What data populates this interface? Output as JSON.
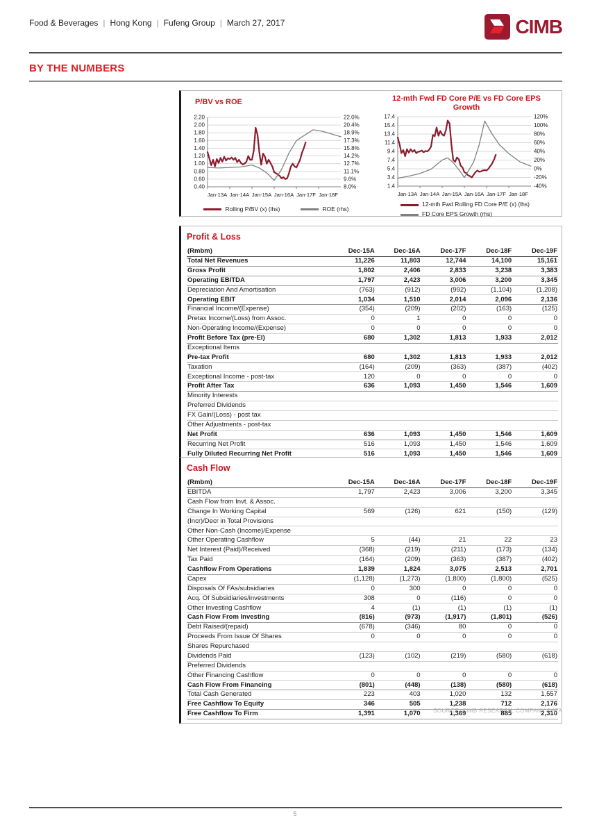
{
  "header": {
    "breadcrumb": [
      "Food & Beverages",
      "Hong Kong",
      "Fufeng Group",
      "March 27, 2017"
    ],
    "separator": "|",
    "logo_text": "CIMB",
    "section_title": "BY THE NUMBERS"
  },
  "footer": {
    "page_number": "5"
  },
  "source_note": "SOURCE: CIMB RESEARCH, COMPANY DATA",
  "colors": {
    "maroon_line": "#8C1B2C",
    "gray_line": "#808080",
    "accent_red": "#C8161D",
    "logo_red": "#9A1B2F",
    "logo_bright_red": "#E8212E"
  },
  "chart_data": [
    {
      "type": "line",
      "title": "P/BV vs ROE",
      "x_tick_labels": [
        "Jan-13A",
        "Jan-14A",
        "Jan-15A",
        "Jan-16A",
        "Jan-17F",
        "Jan-18F"
      ],
      "x_ticks": [
        0,
        12,
        24,
        36,
        48,
        60
      ],
      "x_range": [
        0,
        72
      ],
      "left_axis": {
        "min": 0.4,
        "max": 2.2,
        "ticks": [
          "2.20",
          "2.00",
          "1.80",
          "1.60",
          "1.40",
          "1.20",
          "1.00",
          "0.80",
          "0.60",
          "0.40"
        ]
      },
      "right_axis": {
        "min": 8.0,
        "max": 22.0,
        "ticks": [
          "22.0%",
          "20.4%",
          "18.9%",
          "17.3%",
          "15.8%",
          "14.2%",
          "12.7%",
          "11.1%",
          "9.6%",
          "8.0%"
        ]
      },
      "grid": true,
      "legend_position": "bottom",
      "series": [
        {
          "name": "Rolling P/BV (x) (lhs)",
          "axis": "left",
          "color": "#8C1B2C",
          "values": [
            1.3,
            1.13,
            0.96,
            1.1,
            0.93,
            1.12,
            1.02,
            1.15,
            1.05,
            1.18,
            1.08,
            1.14,
            1.12,
            1.16,
            1.1,
            1.15,
            1.04,
            1.1,
            1.02,
            0.98,
            1.0,
            1.05,
            1.2,
            1.1,
            1.1,
            1.35,
            1.93,
            1.75,
            1.28,
            0.97,
            1.26,
            1.18,
            1.0,
            1.1,
            1.02,
            0.93,
            0.78,
            0.75,
            0.72,
            0.68,
            0.62,
            0.65,
            0.6,
            0.62,
            0.75,
            0.92,
            1.0,
            0.93,
            0.9,
            1.0,
            1.1,
            1.28,
            1.4,
            1.55
          ]
        },
        {
          "name": "ROE (rhs)",
          "axis": "right",
          "color": "#808080",
          "x": [
            0,
            6,
            12,
            18,
            24,
            28,
            32,
            36,
            40,
            44,
            48,
            52,
            57,
            62,
            72
          ],
          "values": [
            11.9,
            11.8,
            11.9,
            12.0,
            12.4,
            11.8,
            10.8,
            9.3,
            11.5,
            14.8,
            17.3,
            18.3,
            19.5,
            19.2,
            18.1
          ]
        }
      ]
    },
    {
      "type": "line",
      "title": "12-mth Fwd FD Core P/E vs FD Core EPS Growth",
      "x_tick_labels": [
        "Jan-13A",
        "Jan-14A",
        "Jan-15A",
        "Jan-16A",
        "Jan-17F",
        "Jan-18F"
      ],
      "x_ticks": [
        0,
        12,
        24,
        36,
        48,
        60
      ],
      "x_range": [
        0,
        72
      ],
      "left_axis": {
        "min": 1.4,
        "max": 17.4,
        "ticks": [
          "17.4",
          "15.4",
          "13.4",
          "11.4",
          "9.4",
          "7.4",
          "5.4",
          "3.4",
          "1.4"
        ]
      },
      "right_axis": {
        "min": -40,
        "max": 120,
        "ticks": [
          "120%",
          "100%",
          "80%",
          "60%",
          "40%",
          "20%",
          "0%",
          "-20%",
          "-40%"
        ]
      },
      "grid": true,
      "legend_position": "bottom",
      "series": [
        {
          "name": "12-mth Fwd Rolling FD Core P/E (x) (lhs)",
          "axis": "left",
          "color": "#8C1B2C",
          "values": [
            12.6,
            11.0,
            9.0,
            9.7,
            8.3,
            9.9,
            9.1,
            9.9,
            9.3,
            9.7,
            9.0,
            9.3,
            9.4,
            9.6,
            9.2,
            9.5,
            9.4,
            9.8,
            10.5,
            13.2,
            12.9,
            14.9,
            13.0,
            14.1,
            13.3,
            13.0,
            14.2,
            16.5,
            15.8,
            11.0,
            7.4,
            7.0,
            8.0,
            7.6,
            6.1,
            5.7,
            4.6,
            4.4,
            3.9,
            3.7,
            3.4,
            4.0,
            4.6,
            5.0,
            4.7,
            4.8,
            5.0,
            5.1,
            5.0,
            5.4,
            6.0,
            6.6,
            7.5,
            8.6
          ]
        },
        {
          "name": "FD Core EPS Growth (rhs)",
          "axis": "right",
          "color": "#808080",
          "x": [
            0,
            6,
            12,
            18,
            24,
            27,
            30,
            33,
            36,
            41,
            44,
            47,
            51,
            55,
            60,
            66,
            72
          ],
          "values": [
            -22,
            -17,
            -11,
            -1,
            20,
            25,
            14,
            -2,
            -20,
            15,
            55,
            110,
            80,
            55,
            35,
            16,
            6
          ]
        }
      ]
    }
  ],
  "tables": [
    {
      "title": "Profit & Loss",
      "unit_label": "(Rmbm)",
      "columns": [
        "Dec-15A",
        "Dec-16A",
        "Dec-17F",
        "Dec-18F",
        "Dec-19F"
      ],
      "rows": [
        {
          "label": "Total Net Revenues",
          "bold": true,
          "values": [
            "11,226",
            "11,803",
            "12,744",
            "14,100",
            "15,161"
          ]
        },
        {
          "label": "Gross Profit",
          "bold": true,
          "values": [
            "1,802",
            "2,406",
            "2,833",
            "3,238",
            "3,383"
          ]
        },
        {
          "label": "Operating EBITDA",
          "bold": true,
          "values": [
            "1,797",
            "2,423",
            "3,006",
            "3,200",
            "3,345"
          ]
        },
        {
          "label": "Depreciation And Amortisation",
          "bold": false,
          "values": [
            "(763)",
            "(912)",
            "(992)",
            "(1,104)",
            "(1,208)"
          ]
        },
        {
          "label": "Operating EBIT",
          "bold": true,
          "values": [
            "1,034",
            "1,510",
            "2,014",
            "2,096",
            "2,136"
          ]
        },
        {
          "label": "Financial Income/(Expense)",
          "bold": false,
          "values": [
            "(354)",
            "(209)",
            "(202)",
            "(163)",
            "(125)"
          ]
        },
        {
          "label": "Pretax Income/(Loss) from Assoc.",
          "bold": false,
          "values": [
            "0",
            "1",
            "0",
            "0",
            "0"
          ]
        },
        {
          "label": "Non-Operating Income/(Expense)",
          "bold": false,
          "values": [
            "0",
            "0",
            "0",
            "0",
            "0"
          ]
        },
        {
          "label": "Profit Before Tax (pre-EI)",
          "bold": true,
          "values": [
            "680",
            "1,302",
            "1,813",
            "1,933",
            "2,012"
          ]
        },
        {
          "label": "Exceptional Items",
          "bold": false,
          "values": [
            "",
            "",
            "",
            "",
            ""
          ]
        },
        {
          "label": "Pre-tax Profit",
          "bold": true,
          "values": [
            "680",
            "1,302",
            "1,813",
            "1,933",
            "2,012"
          ]
        },
        {
          "label": "Taxation",
          "bold": false,
          "values": [
            "(164)",
            "(209)",
            "(363)",
            "(387)",
            "(402)"
          ]
        },
        {
          "label": "Exceptional Income - post-tax",
          "bold": false,
          "values": [
            "120",
            "0",
            "0",
            "0",
            "0"
          ]
        },
        {
          "label": "Profit After Tax",
          "bold": true,
          "values": [
            "636",
            "1,093",
            "1,450",
            "1,546",
            "1,609"
          ]
        },
        {
          "label": "Minority Interests",
          "bold": false,
          "values": [
            "",
            "",
            "",
            "",
            ""
          ]
        },
        {
          "label": "Preferred Dividends",
          "bold": false,
          "values": [
            "",
            "",
            "",
            "",
            ""
          ]
        },
        {
          "label": "FX Gain/(Loss) - post tax",
          "bold": false,
          "values": [
            "",
            "",
            "",
            "",
            ""
          ]
        },
        {
          "label": "Other Adjustments - post-tax",
          "bold": false,
          "values": [
            "",
            "",
            "",
            "",
            ""
          ]
        },
        {
          "label": "Net Profit",
          "bold": true,
          "values": [
            "636",
            "1,093",
            "1,450",
            "1,546",
            "1,609"
          ]
        },
        {
          "label": "Recurring Net Profit",
          "bold": false,
          "values": [
            "516",
            "1,093",
            "1,450",
            "1,546",
            "1,609"
          ]
        },
        {
          "label": "Fully Diluted Recurring Net Profit",
          "bold": true,
          "values": [
            "516",
            "1,093",
            "1,450",
            "1,546",
            "1,609"
          ]
        }
      ]
    },
    {
      "title": "Cash Flow",
      "unit_label": "(Rmbm)",
      "columns": [
        "Dec-15A",
        "Dec-16A",
        "Dec-17F",
        "Dec-18F",
        "Dec-19F"
      ],
      "rows": [
        {
          "label": "EBITDA",
          "bold": false,
          "values": [
            "1,797",
            "2,423",
            "3,006",
            "3,200",
            "3,345"
          ]
        },
        {
          "label": "Cash Flow from Invt. & Assoc.",
          "bold": false,
          "values": [
            "",
            "",
            "",
            "",
            ""
          ]
        },
        {
          "label": "Change In Working Capital",
          "bold": false,
          "values": [
            "569",
            "(126)",
            "621",
            "(150)",
            "(129)"
          ]
        },
        {
          "label": "(Incr)/Decr in Total Provisions",
          "bold": false,
          "values": [
            "",
            "",
            "",
            "",
            ""
          ]
        },
        {
          "label": "Other Non-Cash (Income)/Expense",
          "bold": false,
          "values": [
            "",
            "",
            "",
            "",
            ""
          ]
        },
        {
          "label": "Other Operating Cashflow",
          "bold": false,
          "values": [
            "5",
            "(44)",
            "21",
            "22",
            "23"
          ]
        },
        {
          "label": "Net Interest (Paid)/Received",
          "bold": false,
          "values": [
            "(368)",
            "(219)",
            "(211)",
            "(173)",
            "(134)"
          ]
        },
        {
          "label": "Tax Paid",
          "bold": false,
          "values": [
            "(164)",
            "(209)",
            "(363)",
            "(387)",
            "(402)"
          ]
        },
        {
          "label": "Cashflow From Operations",
          "bold": true,
          "values": [
            "1,839",
            "1,824",
            "3,075",
            "2,513",
            "2,701"
          ]
        },
        {
          "label": "Capex",
          "bold": false,
          "values": [
            "(1,128)",
            "(1,273)",
            "(1,800)",
            "(1,800)",
            "(525)"
          ]
        },
        {
          "label": "Disposals Of FAs/subsidiaries",
          "bold": false,
          "values": [
            "0",
            "300",
            "0",
            "0",
            "0"
          ]
        },
        {
          "label": "Acq. Of Subsidiaries/investments",
          "bold": false,
          "values": [
            "308",
            "0",
            "(116)",
            "0",
            "0"
          ]
        },
        {
          "label": "Other Investing Cashflow",
          "bold": false,
          "values": [
            "4",
            "(1)",
            "(1)",
            "(1)",
            "(1)"
          ]
        },
        {
          "label": "Cash Flow From Investing",
          "bold": true,
          "values": [
            "(816)",
            "(973)",
            "(1,917)",
            "(1,801)",
            "(526)"
          ]
        },
        {
          "label": "Debt Raised/(repaid)",
          "bold": false,
          "values": [
            "(678)",
            "(346)",
            "80",
            "0",
            "0"
          ]
        },
        {
          "label": "Proceeds From Issue Of Shares",
          "bold": false,
          "values": [
            "0",
            "0",
            "0",
            "0",
            "0"
          ]
        },
        {
          "label": "Shares Repurchased",
          "bold": false,
          "values": [
            "",
            "",
            "",
            "",
            ""
          ]
        },
        {
          "label": "Dividends Paid",
          "bold": false,
          "values": [
            "(123)",
            "(102)",
            "(219)",
            "(580)",
            "(618)"
          ]
        },
        {
          "label": "Preferred Dividends",
          "bold": false,
          "values": [
            "",
            "",
            "",
            "",
            ""
          ]
        },
        {
          "label": "Other Financing Cashflow",
          "bold": false,
          "values": [
            "0",
            "0",
            "0",
            "0",
            "0"
          ]
        },
        {
          "label": "Cash Flow From Financing",
          "bold": true,
          "values": [
            "(801)",
            "(448)",
            "(138)",
            "(580)",
            "(618)"
          ]
        },
        {
          "label": "Total Cash Generated",
          "bold": false,
          "values": [
            "223",
            "403",
            "1,020",
            "132",
            "1,557"
          ]
        },
        {
          "label": "Free Cashflow To Equity",
          "bold": true,
          "values": [
            "346",
            "505",
            "1,238",
            "712",
            "2,176"
          ]
        },
        {
          "label": "Free Cashflow To Firm",
          "bold": true,
          "values": [
            "1,391",
            "1,070",
            "1,369",
            "885",
            "2,310"
          ]
        }
      ]
    }
  ]
}
